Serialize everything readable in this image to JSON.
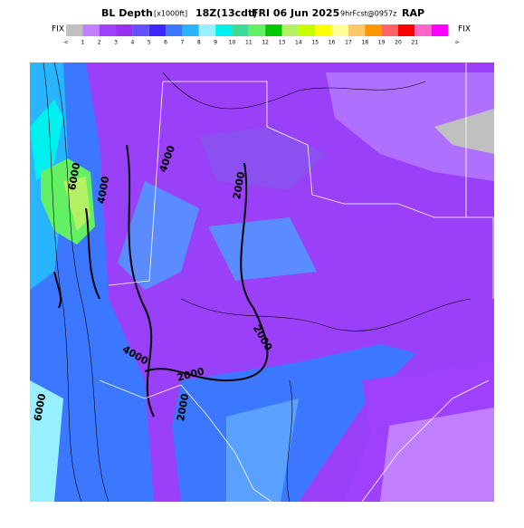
{
  "header": {
    "title": "BL Depth",
    "units": "[x1000ft]",
    "valid": "18Z(13cdt)",
    "date": "FRI 06 Jun 2025",
    "forecast": "9hrFcst@0957z",
    "model": "RAP"
  },
  "legend": {
    "left_label": "FIX",
    "right_label": "FIX",
    "labels": [
      "<",
      "1",
      "2",
      "3",
      "4",
      "5",
      "6",
      "7",
      "8",
      "9",
      "10",
      "11",
      "12",
      "13",
      "14",
      "15",
      "16",
      "17",
      "18",
      "19",
      "20",
      "21",
      ">"
    ],
    "colors": [
      "#c0c0c0",
      "#c080ff",
      "#a040ff",
      "#9a30f0",
      "#6450ff",
      "#3c28ff",
      "#3c78ff",
      "#28b4ff",
      "#96f0ff",
      "#00f0f0",
      "#3cdc96",
      "#64f064",
      "#00c800",
      "#b4f064",
      "#c8ff00",
      "#ffff00",
      "#ffff96",
      "#ffc864",
      "#ff9600",
      "#ff6464",
      "#ff0000",
      "#ff64c8",
      "#ff00ff"
    ]
  },
  "map": {
    "contour_labels": [
      "6000",
      "4000",
      "4000",
      "2000",
      "2000",
      "2000",
      "4000",
      "2000",
      "6000"
    ]
  }
}
